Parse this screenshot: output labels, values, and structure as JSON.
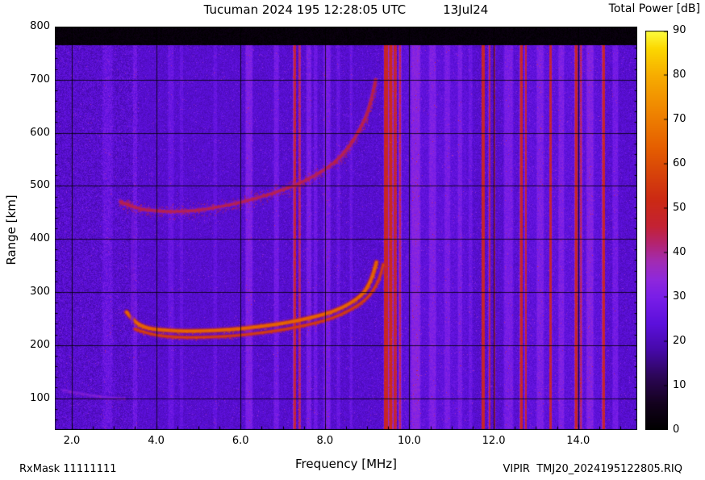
{
  "header": {
    "title": "Tucuman 2024 195 12:28:05 UTC",
    "date": "13Jul24",
    "colorbar_title": "Total Power [dB]"
  },
  "footer": {
    "rx_mask": "RxMask 11111111",
    "file_info": "VIPIR  TMJ20_2024195122805.RIQ"
  },
  "chart_data": {
    "type": "heatmap",
    "title": "Tucuman 2024 195 12:28:05 UTC  13Jul24",
    "xlabel": "Frequency [MHz]",
    "ylabel": "Range [km]",
    "colorbar_label": "Total Power [dB]",
    "xlim": [
      1.6,
      15.4
    ],
    "ylim": [
      40,
      800
    ],
    "x_ticks": [
      2,
      4,
      6,
      8,
      10,
      12,
      14
    ],
    "x_tick_labels": [
      "2.0",
      "4.0",
      "6.0",
      "8.0",
      "10.0",
      "12.0",
      "14.0"
    ],
    "x_minor_step": 0.5,
    "y_ticks": [
      100,
      200,
      300,
      400,
      500,
      600,
      700,
      800
    ],
    "y_tick_labels": [
      "100",
      "200",
      "300",
      "400",
      "500",
      "600",
      "700",
      "800"
    ],
    "y_minor_step": 20,
    "colorbar_range": [
      0,
      90
    ],
    "colorbar_ticks": [
      0,
      10,
      20,
      30,
      40,
      50,
      60,
      70,
      80,
      90
    ],
    "grid": true,
    "data_top_km": 765,
    "palette": [
      [
        0,
        "#000000"
      ],
      [
        6,
        "#14021e"
      ],
      [
        12,
        "#2c0656"
      ],
      [
        18,
        "#4609a8"
      ],
      [
        24,
        "#5c10dc"
      ],
      [
        30,
        "#7a1ee8"
      ],
      [
        34,
        "#8f28dc"
      ],
      [
        38,
        "#a22cb4"
      ],
      [
        42,
        "#b42472"
      ],
      [
        46,
        "#c42234"
      ],
      [
        52,
        "#cc2a14"
      ],
      [
        58,
        "#d8440a"
      ],
      [
        64,
        "#e66000"
      ],
      [
        72,
        "#f08600"
      ],
      [
        80,
        "#f7ad00"
      ],
      [
        86,
        "#fcd800"
      ],
      [
        90,
        "#fdfd40"
      ]
    ],
    "noise": {
      "base": 22.5,
      "amp": 3.0,
      "amp_low": 4.6,
      "low_freq_limit": 3.6,
      "speckle_p": 0.02,
      "speckle_amp": 9
    },
    "rfi_stripes": [
      {
        "f": 2.85,
        "w": 0.28,
        "db": 4
      },
      {
        "f": 3.5,
        "w": 0.12,
        "db": 5
      },
      {
        "f": 4.35,
        "w": 0.16,
        "db": 4
      },
      {
        "f": 4.6,
        "w": 0.1,
        "db": 3
      },
      {
        "f": 5.4,
        "w": 0.1,
        "db": 3
      },
      {
        "f": 6.2,
        "w": 0.2,
        "db": 8
      },
      {
        "f": 6.85,
        "w": 0.14,
        "db": 6
      },
      {
        "f": 7.28,
        "w": 0.08,
        "db": 23
      },
      {
        "f": 7.4,
        "w": 0.06,
        "db": 20
      },
      {
        "f": 7.62,
        "w": 0.14,
        "db": 7
      },
      {
        "f": 7.78,
        "w": 0.1,
        "db": 5
      },
      {
        "f": 8.05,
        "w": 0.2,
        "db": 7
      },
      {
        "f": 8.32,
        "w": 0.1,
        "db": 4
      },
      {
        "f": 8.62,
        "w": 0.08,
        "db": 4
      },
      {
        "f": 9.45,
        "w": 0.13,
        "db": 26
      },
      {
        "f": 9.56,
        "w": 0.1,
        "db": 28
      },
      {
        "f": 9.66,
        "w": 0.1,
        "db": 24
      },
      {
        "f": 9.78,
        "w": 0.07,
        "db": 20
      },
      {
        "f": 10.15,
        "w": 0.26,
        "db": 8
      },
      {
        "f": 10.55,
        "w": 0.2,
        "db": 6
      },
      {
        "f": 10.9,
        "w": 0.16,
        "db": 5
      },
      {
        "f": 11.2,
        "w": 0.12,
        "db": 5
      },
      {
        "f": 11.45,
        "w": 0.1,
        "db": 4
      },
      {
        "f": 11.75,
        "w": 0.09,
        "db": 25
      },
      {
        "f": 11.9,
        "w": 0.06,
        "db": 22
      },
      {
        "f": 12.02,
        "w": 0.05,
        "db": 20
      },
      {
        "f": 12.35,
        "w": 0.26,
        "db": 7
      },
      {
        "f": 12.65,
        "w": 0.08,
        "db": 24
      },
      {
        "f": 12.76,
        "w": 0.06,
        "db": 22
      },
      {
        "f": 13.1,
        "w": 0.2,
        "db": 6
      },
      {
        "f": 13.35,
        "w": 0.07,
        "db": 22
      },
      {
        "f": 13.6,
        "w": 0.16,
        "db": 6
      },
      {
        "f": 13.95,
        "w": 0.08,
        "db": 24
      },
      {
        "f": 14.07,
        "w": 0.05,
        "db": 20
      },
      {
        "f": 14.28,
        "w": 0.2,
        "db": 7
      },
      {
        "f": 14.6,
        "w": 0.08,
        "db": 24
      },
      {
        "f": 14.88,
        "w": 0.16,
        "db": 6
      },
      {
        "f": 10.6,
        "w": 1.9,
        "db": 2
      },
      {
        "f": 13.6,
        "w": 2.4,
        "db": 2
      }
    ],
    "traces": [
      {
        "name": "f-layer-o-trace",
        "db": 65,
        "thickness": 3.2,
        "alpha": 0.95,
        "dots": 160,
        "dot_spread": 5,
        "points": [
          [
            3.3,
            262
          ],
          [
            3.5,
            242
          ],
          [
            3.8,
            231
          ],
          [
            4.3,
            227
          ],
          [
            5.0,
            226
          ],
          [
            5.8,
            229
          ],
          [
            6.5,
            235
          ],
          [
            7.1,
            242
          ],
          [
            7.7,
            252
          ],
          [
            8.2,
            263
          ],
          [
            8.6,
            278
          ],
          [
            8.9,
            296
          ],
          [
            9.05,
            315
          ],
          [
            9.15,
            335
          ],
          [
            9.22,
            356
          ]
        ]
      },
      {
        "name": "f-layer-x-trace",
        "db": 57,
        "thickness": 2.4,
        "alpha": 0.85,
        "dots": 120,
        "dot_spread": 4,
        "points": [
          [
            3.5,
            230
          ],
          [
            3.9,
            219
          ],
          [
            4.4,
            215
          ],
          [
            5.0,
            214
          ],
          [
            5.8,
            217
          ],
          [
            6.5,
            223
          ],
          [
            7.1,
            230
          ],
          [
            7.7,
            240
          ],
          [
            8.2,
            251
          ],
          [
            8.6,
            266
          ],
          [
            8.95,
            284
          ],
          [
            9.15,
            303
          ],
          [
            9.3,
            326
          ],
          [
            9.38,
            352
          ]
        ]
      },
      {
        "name": "second-hop-trace",
        "db": 46,
        "thickness": 3.0,
        "alpha": 0.7,
        "dots": 900,
        "dot_spread": 13,
        "points": [
          [
            3.15,
            470
          ],
          [
            3.5,
            458
          ],
          [
            4.0,
            452
          ],
          [
            4.6,
            451
          ],
          [
            5.2,
            456
          ],
          [
            5.8,
            465
          ],
          [
            6.4,
            477
          ],
          [
            7.0,
            492
          ],
          [
            7.5,
            508
          ],
          [
            8.0,
            530
          ],
          [
            8.4,
            556
          ],
          [
            8.7,
            588
          ],
          [
            8.95,
            625
          ],
          [
            9.1,
            662
          ],
          [
            9.2,
            700
          ]
        ]
      },
      {
        "name": "e-layer-trace",
        "db": 33,
        "thickness": 2.0,
        "alpha": 0.5,
        "dots": 200,
        "dot_spread": 4,
        "points": [
          [
            1.75,
            116
          ],
          [
            2.1,
            110
          ],
          [
            2.5,
            105
          ],
          [
            2.9,
            101
          ],
          [
            3.25,
            99
          ]
        ]
      },
      {
        "name": "spread-echo-column",
        "db": 31,
        "thickness": 1.6,
        "alpha": 0.45,
        "dots": 250,
        "dot_spread": 3,
        "points": [
          [
            3.42,
            238
          ],
          [
            3.43,
            300
          ],
          [
            3.42,
            370
          ],
          [
            3.44,
            445
          ]
        ]
      }
    ]
  }
}
